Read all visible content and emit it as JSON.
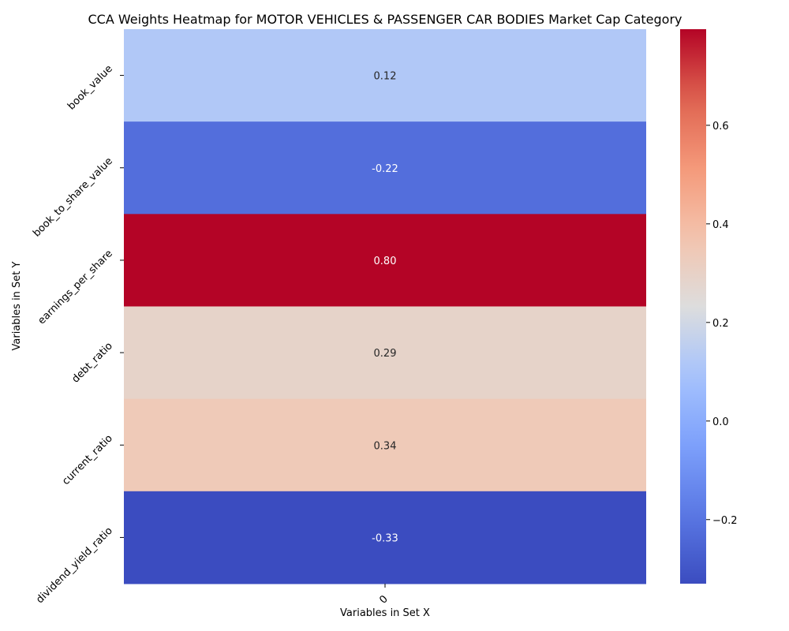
{
  "chart_data": {
    "type": "heatmap",
    "title": "CCA Weights Heatmap for MOTOR VEHICLES & PASSENGER CAR BODIES Market Cap Category",
    "xlabel": "Variables in Set X",
    "ylabel": "Variables in Set Y",
    "x_categories": [
      "0"
    ],
    "y_categories": [
      "book_value",
      "book_to_share_value",
      "earnings_per_share",
      "debt_ratio",
      "current_ratio",
      "dividend_yield_ratio"
    ],
    "values": [
      [
        0.12
      ],
      [
        -0.22
      ],
      [
        0.8
      ],
      [
        0.29
      ],
      [
        0.34
      ],
      [
        -0.33
      ]
    ],
    "value_labels": [
      "0.12",
      "-0.22",
      "0.80",
      "0.29",
      "0.34",
      "-0.33"
    ],
    "colormap": "coolwarm",
    "colorbar": {
      "range": [
        -0.33,
        0.795
      ],
      "ticks": [
        -0.2,
        0.0,
        0.2,
        0.4,
        0.6
      ],
      "tick_labels": [
        "−0.2",
        "0.0",
        "0.2",
        "0.4",
        "0.6"
      ]
    }
  }
}
